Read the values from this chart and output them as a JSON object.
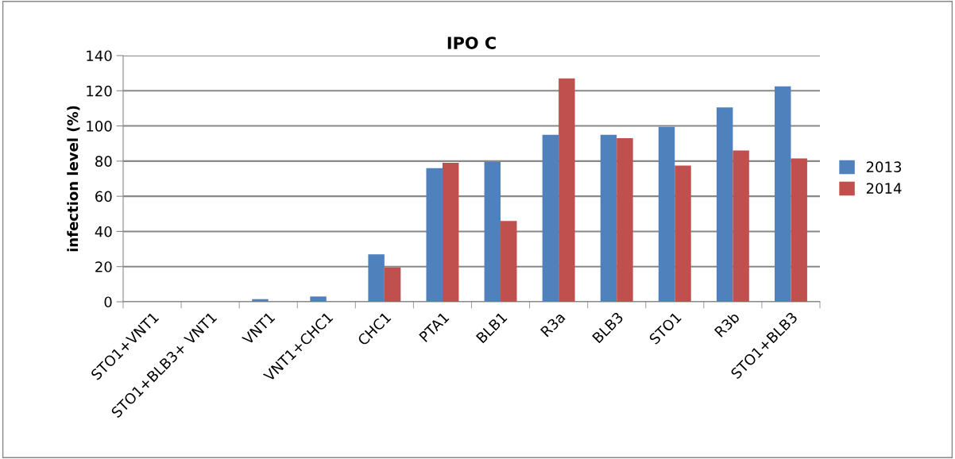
{
  "chart_data": {
    "type": "bar",
    "title": "IPO C",
    "ylabel": "infection level (%)",
    "categories": [
      "STO1+VNT1",
      "STO1+BLB3+ VNT1",
      "VNT1",
      "VNT1+CHC1",
      "CHC1",
      "PTA1",
      "BLB1",
      "R3a",
      "BLB3",
      "STO1",
      "R3b",
      "STO1+BLB3"
    ],
    "series": [
      {
        "name": "2013",
        "color": "#4f81bd",
        "values": [
          null,
          null,
          1.5,
          3,
          27,
          76,
          79.5,
          95,
          95,
          99.5,
          110.5,
          122.5
        ]
      },
      {
        "name": "2014",
        "color": "#c0504d",
        "values": [
          null,
          null,
          null,
          null,
          19.5,
          79,
          46,
          127,
          93,
          77.5,
          86,
          81.5
        ]
      }
    ],
    "ylim": [
      0,
      140
    ],
    "yticks": [
      0,
      20,
      40,
      60,
      80,
      100,
      120,
      140
    ],
    "grid": "y",
    "legend": "right"
  }
}
